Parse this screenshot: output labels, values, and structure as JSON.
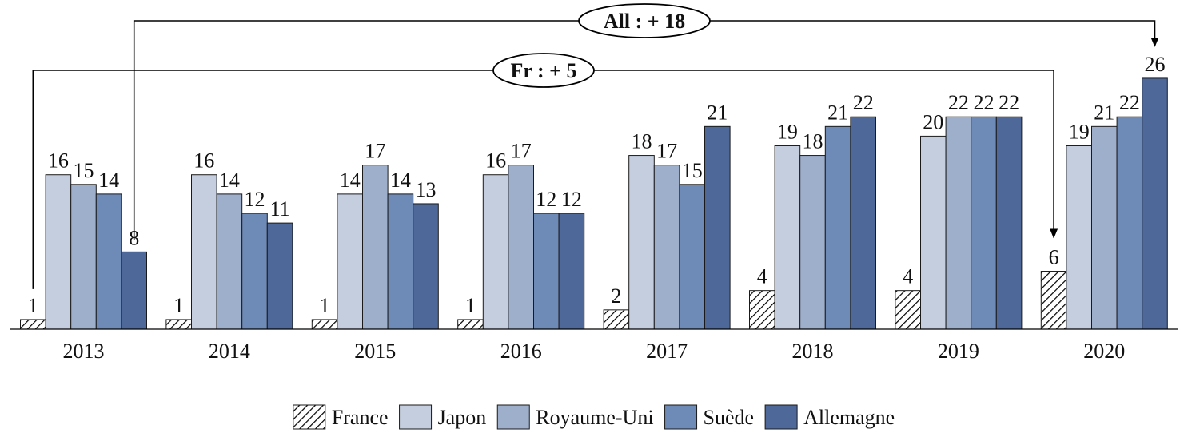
{
  "chart_data": {
    "type": "bar",
    "categories": [
      "2013",
      "2014",
      "2015",
      "2016",
      "2017",
      "2018",
      "2019",
      "2020"
    ],
    "series": [
      {
        "name": "France",
        "values": [
          1,
          1,
          1,
          1,
          2,
          4,
          4,
          6
        ]
      },
      {
        "name": "Japon",
        "values": [
          16,
          16,
          14,
          16,
          18,
          19,
          20,
          19
        ]
      },
      {
        "name": "Royaume-Uni",
        "values": [
          15,
          14,
          17,
          17,
          17,
          18,
          22,
          21
        ]
      },
      {
        "name": "Suède",
        "values": [
          14,
          12,
          14,
          12,
          15,
          21,
          22,
          22
        ]
      },
      {
        "name": "Allemagne",
        "values": [
          8,
          11,
          13,
          12,
          21,
          22,
          22,
          26
        ]
      }
    ],
    "series_colors": [
      "hatched",
      "#c4cedf",
      "#9eafcc",
      "#6e8bb8",
      "#4d6899"
    ],
    "annotations": [
      {
        "text": "All : + 18",
        "from": {
          "category": "2013",
          "series": "Allemagne"
        },
        "to": {
          "category": "2020",
          "series": "Allemagne"
        }
      },
      {
        "text": "Fr : + 5",
        "from": {
          "category": "2013",
          "series": "France"
        },
        "to": {
          "category": "2020",
          "series": "France"
        }
      }
    ],
    "legend_position": "bottom",
    "grid": false,
    "ylim": [
      0,
      27
    ],
    "title": "",
    "xlabel": "",
    "ylabel": ""
  }
}
